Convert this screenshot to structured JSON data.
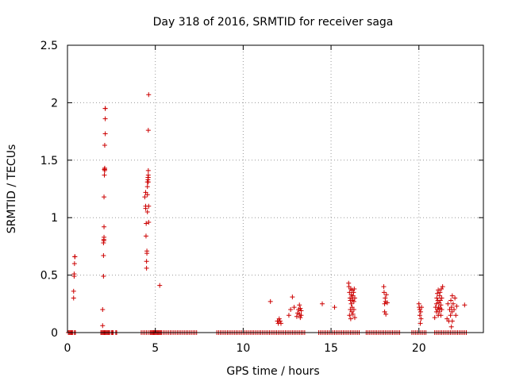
{
  "chart_data": {
    "type": "scatter",
    "title": "Day 318 of 2016, SRMTID for receiver saga",
    "xlabel": "GPS time / hours",
    "ylabel": "SRMTID / TECUs",
    "xlim": [
      0,
      23.67
    ],
    "ylim": [
      0,
      2.5
    ],
    "x_ticks": [
      0,
      5,
      10,
      15,
      20
    ],
    "x_tick_labels": [
      "0",
      "5",
      "10",
      "15",
      "20"
    ],
    "y_ticks": [
      0,
      0.5,
      1,
      1.5,
      2,
      2.5
    ],
    "y_tick_labels": [
      "0",
      "0.5",
      "1",
      "1.5",
      "2",
      "2.5"
    ],
    "grid": "dotted",
    "legend": "none",
    "marker": "plus",
    "color": "#cc0000",
    "series": [
      {
        "x": [
          0.35,
          0.35,
          0.38,
          0.38,
          0.4,
          0.42,
          0.42,
          2.0,
          2.0,
          2.05,
          2.05,
          2.05,
          2.07,
          2.07,
          2.08,
          2.08,
          2.08,
          2.1,
          2.1,
          2.12,
          2.12,
          2.12,
          2.12,
          2.15,
          2.15,
          2.15,
          2.15,
          4.4,
          4.45,
          4.45,
          4.45,
          4.47,
          4.48,
          4.5,
          4.5,
          4.52,
          4.52,
          4.55,
          4.55,
          4.55,
          4.55,
          4.58,
          4.58,
          4.6,
          4.6,
          4.6,
          4.6,
          4.6,
          4.62,
          4.62,
          4.62,
          5.25,
          11.55,
          11.95,
          12.0,
          12.02,
          12.05,
          12.1,
          12.15,
          12.6,
          12.7,
          12.8,
          12.9,
          13.05,
          13.1,
          13.15,
          13.2,
          13.2,
          13.25,
          13.25,
          13.3,
          13.3,
          14.5,
          15.2,
          16.0,
          16.02,
          16.05,
          16.05,
          16.08,
          16.1,
          16.1,
          16.12,
          16.12,
          16.15,
          16.15,
          16.18,
          16.18,
          16.2,
          16.2,
          16.22,
          16.25,
          16.25,
          16.28,
          16.3,
          16.3,
          16.32,
          16.35,
          16.35,
          18.0,
          18.02,
          18.05,
          18.05,
          18.08,
          18.1,
          18.12,
          18.15,
          18.2,
          20.0,
          20.02,
          20.05,
          20.05,
          20.08,
          20.1,
          20.12,
          20.15,
          20.9,
          20.95,
          21.0,
          21.0,
          21.02,
          21.05,
          21.05,
          21.08,
          21.1,
          21.1,
          21.12,
          21.15,
          21.15,
          21.18,
          21.2,
          21.2,
          21.22,
          21.25,
          21.25,
          21.28,
          21.3,
          21.3,
          21.35,
          21.6,
          21.65,
          21.7,
          21.75,
          21.8,
          21.82,
          21.85,
          21.85,
          21.88,
          21.9,
          21.9,
          21.95,
          22.0,
          22.05,
          22.1,
          22.15,
          22.6
        ],
        "y": [
          0.3,
          0.36,
          0.49,
          0.51,
          0.6,
          0.66,
          0.66,
          0.06,
          0.2,
          0.49,
          0.67,
          0.78,
          0.8,
          0.81,
          0.83,
          0.92,
          1.18,
          1.37,
          1.42,
          1.41,
          1.43,
          1.42,
          1.63,
          1.73,
          1.86,
          1.95,
          1.95,
          1.18,
          1.1,
          1.08,
          1.22,
          0.84,
          0.95,
          0.56,
          0.62,
          0.69,
          0.71,
          1.05,
          1.2,
          1.27,
          1.31,
          1.33,
          1.35,
          1.37,
          1.41,
          1.35,
          1.31,
          1.76,
          2.07,
          0.96,
          1.1,
          0.41,
          0.27,
          0.1,
          0.08,
          0.1,
          0.12,
          0.1,
          0.08,
          0.15,
          0.2,
          0.31,
          0.22,
          0.14,
          0.17,
          0.2,
          0.16,
          0.24,
          0.13,
          0.21,
          0.19,
          0.15,
          0.25,
          0.22,
          0.43,
          0.4,
          0.35,
          0.15,
          0.3,
          0.2,
          0.28,
          0.12,
          0.38,
          0.33,
          0.25,
          0.3,
          0.18,
          0.37,
          0.22,
          0.28,
          0.32,
          0.16,
          0.35,
          0.2,
          0.27,
          0.38,
          0.3,
          0.13,
          0.4,
          0.35,
          0.25,
          0.18,
          0.3,
          0.27,
          0.16,
          0.33,
          0.26,
          0.25,
          0.22,
          0.2,
          0.15,
          0.08,
          0.18,
          0.12,
          0.22,
          0.13,
          0.22,
          0.18,
          0.25,
          0.3,
          0.2,
          0.34,
          0.28,
          0.15,
          0.37,
          0.22,
          0.26,
          0.18,
          0.32,
          0.35,
          0.21,
          0.28,
          0.15,
          0.24,
          0.38,
          0.2,
          0.3,
          0.4,
          0.12,
          0.25,
          0.1,
          0.2,
          0.15,
          0.28,
          0.05,
          0.22,
          0.18,
          0.32,
          0.1,
          0.25,
          0.2,
          0.3,
          0.15,
          0.23,
          0.24
        ]
      },
      {
        "x": [
          0.05,
          0.1,
          0.15,
          0.2,
          0.25,
          0.3,
          0.4,
          0.45,
          1.9,
          1.95,
          2.0,
          2.05,
          2.1,
          2.15,
          2.2,
          2.25,
          2.3,
          2.35,
          2.4,
          2.5,
          2.55,
          2.6,
          2.75,
          2.8,
          4.2,
          4.3,
          4.4,
          4.5,
          4.6,
          4.7,
          4.75,
          4.8,
          4.85,
          4.9,
          4.95,
          5.0,
          5.05,
          5.1,
          5.15,
          5.2,
          5.25,
          5.3,
          5.35,
          5.45,
          5.55,
          5.65,
          5.75,
          5.85,
          5.95,
          6.05,
          6.15,
          6.25,
          6.35,
          6.45,
          6.55,
          6.65,
          6.75,
          6.85,
          6.95,
          7.05,
          7.15,
          7.25,
          7.35,
          8.5,
          8.6,
          8.7,
          8.8,
          8.9,
          9.0,
          9.1,
          9.2,
          9.3,
          9.4,
          9.5,
          9.6,
          9.7,
          9.8,
          9.9,
          10.0,
          10.1,
          10.2,
          10.3,
          10.4,
          10.5,
          10.6,
          10.7,
          10.8,
          10.9,
          11.0,
          11.1,
          11.2,
          11.3,
          11.4,
          11.5,
          11.6,
          11.7,
          11.8,
          11.9,
          12.0,
          12.1,
          12.2,
          12.3,
          12.4,
          12.5,
          12.6,
          12.7,
          12.8,
          12.9,
          13.0,
          13.1,
          13.2,
          13.3,
          13.4,
          13.5,
          14.3,
          14.4,
          14.5,
          14.6,
          14.7,
          14.8,
          14.9,
          15.0,
          15.1,
          15.2,
          15.3,
          15.4,
          15.5,
          15.6,
          15.7,
          15.8,
          15.9,
          16.0,
          16.1,
          16.2,
          16.3,
          16.4,
          16.5,
          16.6,
          17.0,
          17.1,
          17.2,
          17.3,
          17.4,
          17.5,
          17.6,
          17.7,
          17.8,
          17.9,
          18.0,
          18.1,
          18.2,
          18.3,
          18.4,
          18.5,
          18.6,
          18.7,
          18.8,
          18.9,
          19.6,
          19.7,
          19.8,
          19.9,
          20.0,
          20.1,
          20.2,
          20.3,
          20.4,
          20.9,
          21.0,
          21.1,
          21.2,
          21.3,
          21.4,
          21.5,
          21.6,
          21.7,
          21.8,
          21.9,
          22.0,
          22.1,
          22.2,
          22.3,
          22.4,
          22.5,
          22.6,
          22.7
        ],
        "y": [
          0,
          0,
          0,
          0,
          0,
          0,
          0,
          0,
          0,
          0,
          0,
          0,
          0,
          0,
          0,
          0,
          0,
          0,
          0,
          0,
          0,
          0,
          0,
          0,
          0,
          0,
          0,
          0,
          0,
          0,
          0,
          0,
          0,
          0,
          0,
          0,
          0,
          0,
          0,
          0,
          0,
          0,
          0,
          0,
          0,
          0,
          0,
          0,
          0,
          0,
          0,
          0,
          0,
          0,
          0,
          0,
          0,
          0,
          0,
          0,
          0,
          0,
          0,
          0,
          0,
          0,
          0,
          0,
          0,
          0,
          0,
          0,
          0,
          0,
          0,
          0,
          0,
          0,
          0,
          0,
          0,
          0,
          0,
          0,
          0,
          0,
          0,
          0,
          0,
          0,
          0,
          0,
          0,
          0,
          0,
          0,
          0,
          0,
          0,
          0,
          0,
          0,
          0,
          0,
          0,
          0,
          0,
          0,
          0,
          0,
          0,
          0,
          0,
          0,
          0,
          0,
          0,
          0,
          0,
          0,
          0,
          0,
          0,
          0,
          0,
          0,
          0,
          0,
          0,
          0,
          0,
          0,
          0,
          0,
          0,
          0,
          0,
          0,
          0,
          0,
          0,
          0,
          0,
          0,
          0,
          0,
          0,
          0,
          0,
          0,
          0,
          0,
          0,
          0,
          0,
          0,
          0,
          0,
          0,
          0,
          0,
          0,
          0,
          0,
          0,
          0,
          0,
          0,
          0,
          0,
          0,
          0,
          0,
          0,
          0,
          0,
          0,
          0,
          0,
          0,
          0,
          0,
          0,
          0,
          0,
          0
        ]
      }
    ]
  }
}
